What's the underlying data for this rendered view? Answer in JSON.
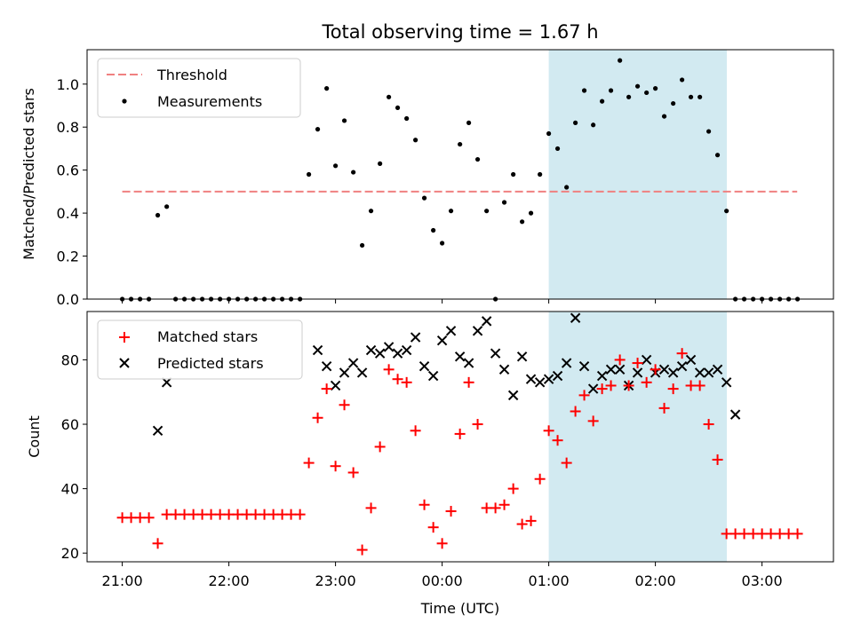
{
  "chart_data": {
    "type": "scatter",
    "title": "Total observing time = 1.67 h",
    "xlabel": "Time (UTC)",
    "x_unit": "hours (21:00 = 21, wraps past midnight to 24+)",
    "x_ticks": [
      {
        "value": 21,
        "label": "21:00"
      },
      {
        "value": 22,
        "label": "22:00"
      },
      {
        "value": 23,
        "label": "23:00"
      },
      {
        "value": 24,
        "label": "00:00"
      },
      {
        "value": 25,
        "label": "01:00"
      },
      {
        "value": 26,
        "label": "02:00"
      },
      {
        "value": 27,
        "label": "03:00"
      }
    ],
    "xlim": [
      20.67,
      27.67
    ],
    "shaded_interval": [
      25.0,
      26.67
    ],
    "shade_color": "#add8e6",
    "panels": [
      {
        "ylabel": "Matched/Predicted stars",
        "ylim": [
          0,
          1.16
        ],
        "y_ticks": [
          "0.0",
          "0.2",
          "0.4",
          "0.6",
          "0.8",
          "1.0"
        ],
        "y_tick_values": [
          0,
          0.2,
          0.4,
          0.6,
          0.8,
          1.0
        ],
        "threshold": {
          "name": "Threshold",
          "value": 0.5,
          "x_range": [
            21.0,
            27.33
          ],
          "color": "#f08080"
        },
        "series": [
          {
            "name": "Measurements",
            "color": "#000000",
            "marker": "dot",
            "x": [
              21.0,
              21.083,
              21.167,
              21.25,
              21.333,
              21.417,
              21.5,
              21.583,
              21.667,
              21.75,
              21.833,
              21.917,
              22.0,
              22.083,
              22.167,
              22.25,
              22.333,
              22.417,
              22.5,
              22.583,
              22.667,
              22.75,
              22.833,
              22.917,
              23.0,
              23.083,
              23.167,
              23.25,
              23.333,
              23.417,
              23.5,
              23.583,
              23.667,
              23.75,
              23.833,
              23.917,
              24.0,
              24.083,
              24.167,
              24.25,
              24.333,
              24.417,
              24.5,
              24.583,
              24.667,
              24.75,
              24.833,
              24.917,
              25.0,
              25.083,
              25.167,
              25.25,
              25.333,
              25.417,
              25.5,
              25.583,
              25.667,
              25.75,
              25.833,
              25.917,
              26.0,
              26.083,
              26.167,
              26.25,
              26.333,
              26.417,
              26.5,
              26.583,
              26.667,
              26.75,
              26.833,
              26.917,
              27.0,
              27.083,
              27.167,
              27.25,
              27.333
            ],
            "values": [
              0,
              0,
              0,
              0,
              0.39,
              0.43,
              0,
              0,
              0,
              0,
              0,
              0,
              0,
              0,
              0,
              0,
              0,
              0,
              0,
              0,
              0,
              0.58,
              0.79,
              0.98,
              0.62,
              0.83,
              0.59,
              0.25,
              0.41,
              0.63,
              0.94,
              0.89,
              0.84,
              0.74,
              0.47,
              0.32,
              0.26,
              0.41,
              0.72,
              0.82,
              0.65,
              0.41,
              0,
              0.45,
              0.58,
              0.36,
              0.4,
              0.58,
              0.77,
              0.7,
              0.52,
              0.82,
              0.97,
              0.81,
              0.92,
              0.97,
              1.11,
              0.94,
              0.99,
              0.96,
              0.98,
              0.85,
              0.91,
              1.02,
              0.94,
              0.94,
              0.78,
              0.67,
              0.41,
              0,
              0,
              0,
              0,
              0,
              0,
              0,
              0
            ]
          }
        ]
      },
      {
        "ylabel": "Count",
        "ylim": [
          17.3,
          95.0
        ],
        "y_ticks": [
          "20",
          "40",
          "60",
          "80"
        ],
        "y_tick_values": [
          20,
          40,
          60,
          80
        ],
        "series": [
          {
            "name": "Matched stars",
            "color": "#ff0000",
            "marker": "plus",
            "x": [
              21.0,
              21.083,
              21.167,
              21.25,
              21.333,
              21.417,
              21.5,
              21.583,
              21.667,
              21.75,
              21.833,
              21.917,
              22.0,
              22.083,
              22.167,
              22.25,
              22.333,
              22.417,
              22.5,
              22.583,
              22.667,
              22.75,
              22.833,
              22.917,
              23.0,
              23.083,
              23.167,
              23.25,
              23.333,
              23.417,
              23.5,
              23.583,
              23.667,
              23.75,
              23.833,
              23.917,
              24.0,
              24.083,
              24.167,
              24.25,
              24.333,
              24.417,
              24.5,
              24.583,
              24.667,
              24.75,
              24.833,
              24.917,
              25.0,
              25.083,
              25.167,
              25.25,
              25.333,
              25.417,
              25.5,
              25.583,
              25.667,
              25.75,
              25.833,
              25.917,
              26.0,
              26.083,
              26.167,
              26.25,
              26.333,
              26.417,
              26.5,
              26.583,
              26.667,
              26.75,
              26.833,
              26.917,
              27.0,
              27.083,
              27.167,
              27.25,
              27.333
            ],
            "values": [
              31,
              31,
              31,
              31,
              23,
              32,
              32,
              32,
              32,
              32,
              32,
              32,
              32,
              32,
              32,
              32,
              32,
              32,
              32,
              32,
              32,
              48,
              62,
              71,
              47,
              66,
              45,
              21,
              34,
              53,
              77,
              74,
              73,
              58,
              35,
              28,
              23,
              33,
              57,
              73,
              60,
              34,
              34,
              35,
              40,
              29,
              30,
              43,
              58,
              55,
              48,
              64,
              69,
              61,
              71,
              72,
              80,
              72,
              79,
              73,
              77,
              65,
              71,
              82,
              72,
              72,
              60,
              49,
              26,
              26,
              26,
              26,
              26,
              26,
              26,
              26,
              26
            ]
          },
          {
            "name": "Predicted stars",
            "color": "#000000",
            "marker": "cross",
            "x": [
              21.333,
              21.417,
              22.833,
              22.917,
              23.0,
              23.083,
              23.167,
              23.25,
              23.333,
              23.417,
              23.5,
              23.583,
              23.667,
              23.75,
              23.833,
              23.917,
              24.0,
              24.083,
              24.167,
              24.25,
              24.333,
              24.417,
              24.5,
              24.583,
              24.667,
              24.75,
              24.833,
              24.917,
              25.0,
              25.083,
              25.167,
              25.25,
              25.333,
              25.417,
              25.5,
              25.583,
              25.667,
              25.75,
              25.833,
              25.917,
              26.0,
              26.083,
              26.167,
              26.25,
              26.333,
              26.417,
              26.5,
              26.583,
              26.667,
              26.75
            ],
            "values": [
              58,
              73,
              83,
              78,
              72,
              76,
              79,
              76,
              83,
              82,
              84,
              82,
              83,
              87,
              78,
              75,
              86,
              89,
              81,
              79,
              89,
              92,
              82,
              77,
              69,
              81,
              74,
              73,
              74,
              75,
              79,
              93,
              78,
              71,
              75,
              77,
              77,
              72,
              76,
              80,
              76,
              77,
              76,
              78,
              80,
              76,
              76,
              77,
              73,
              63
            ]
          }
        ]
      }
    ],
    "legends": [
      {
        "panel": 0,
        "placement": "upper-left",
        "entries": [
          "Threshold",
          "Measurements"
        ]
      },
      {
        "panel": 1,
        "placement": "upper-left",
        "entries": [
          "Matched stars",
          "Predicted stars"
        ]
      }
    ]
  }
}
